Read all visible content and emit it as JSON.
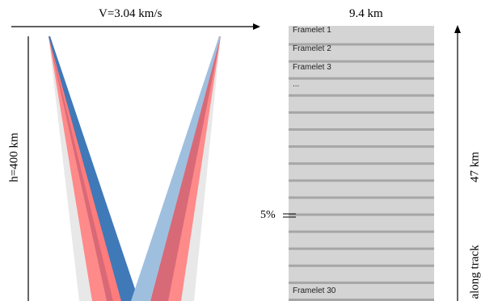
{
  "labels": {
    "velocity": "V=3.04 km/s",
    "altitude": "h=400 km",
    "swath_width": "9.4 km",
    "frame_length": "47 km",
    "along_track": "along track",
    "overlap": "5%"
  },
  "framelets": {
    "visible_labels": [
      "Framelet 1",
      "Framelet 2",
      "Framelet 3",
      "...",
      "Framelet 30"
    ],
    "count": 30,
    "overlap_percent": 5
  },
  "colors": {
    "framelet_fill": "#d4d4d4",
    "framelet_separator": "#a6a6a6",
    "beam_light_gray": "#e6e6e6",
    "beam_red": "#ff7c7c",
    "beam_blue": "#3f79b8",
    "beam_light_blue": "#9fbfdf",
    "beam_dark_red": "#d86070"
  }
}
